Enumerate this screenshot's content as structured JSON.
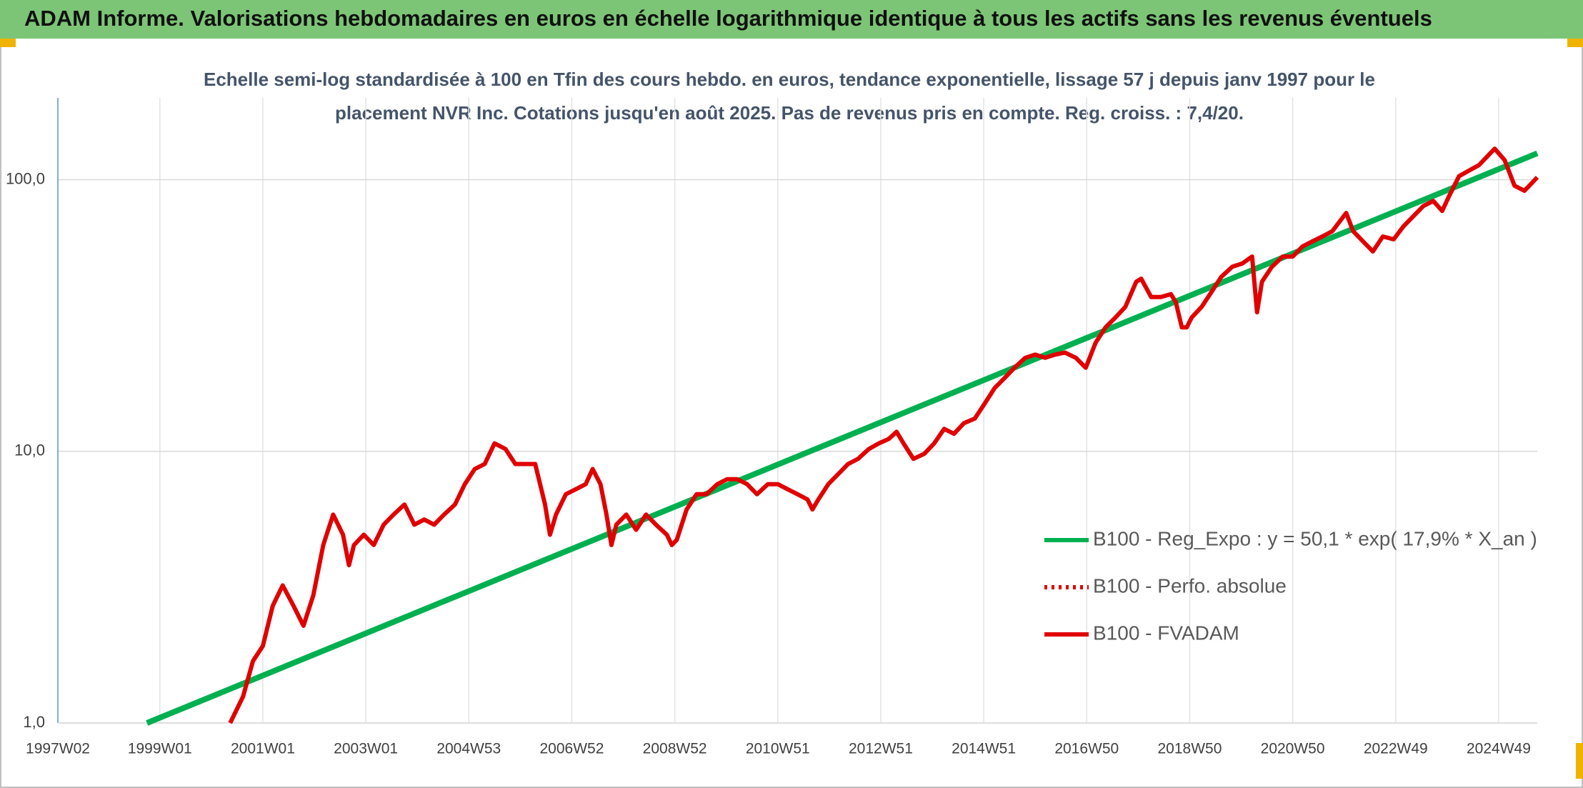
{
  "chart_data": {
    "type": "line",
    "title": "ADAM Informe. Valorisations hebdomadaires en euros en échelle logarithmique identique à tous les actifs sans les revenus éventuels",
    "subtitle": [
      "Echelle semi-log standardisée à 100 en Tfin des cours hebdo. en euros, tendance exponentielle, lissage 57 j depuis janv 1997 pour le",
      "placement NVR Inc. Cotations jusqu'en août 2025. Pas de revenus pris en compte. Reg. croiss. : 7,4/20."
    ],
    "log_scale": true,
    "grid": true,
    "legend": "right",
    "xlim": [
      0,
      1494
    ],
    "xticks": [
      {
        "value": 0,
        "label": "1997W02"
      },
      {
        "value": 103,
        "label": "1999W01"
      },
      {
        "value": 207,
        "label": "2001W01"
      },
      {
        "value": 311,
        "label": "2003W01"
      },
      {
        "value": 415,
        "label": "2004W53"
      },
      {
        "value": 519,
        "label": "2006W52"
      },
      {
        "value": 623,
        "label": "2008W52"
      },
      {
        "value": 727,
        "label": "2010W51"
      },
      {
        "value": 831,
        "label": "2012W51"
      },
      {
        "value": 935,
        "label": "2014W51"
      },
      {
        "value": 1039,
        "label": "2016W50"
      },
      {
        "value": 1143,
        "label": "2018W50"
      },
      {
        "value": 1247,
        "label": "2020W50"
      },
      {
        "value": 1351,
        "label": "2022W49"
      },
      {
        "value": 1455,
        "label": "2024W49"
      }
    ],
    "ylim": [
      1,
      200
    ],
    "yticks": [
      {
        "value": 1,
        "label": "1,0"
      },
      {
        "value": 10,
        "label": "10,0"
      },
      {
        "value": 100,
        "label": "100,0"
      }
    ],
    "series": [
      {
        "name": "B100 - Reg_Expo : y = 50,1 * exp( 17,9% *  X_an )",
        "color": "#00b050",
        "style": "solid",
        "x": [
          90,
          1494
        ],
        "values": [
          1.0,
          125
        ]
      },
      {
        "name": "B100 - Perfo. absolue",
        "color": "#e00000",
        "style": "dotted",
        "x": [],
        "values": []
      },
      {
        "name": "B100 - FVADAM",
        "color": "#e00000",
        "style": "solid",
        "x": [
          174,
          187,
          197,
          207,
          217,
          227,
          238,
          248,
          258,
          268,
          278,
          288,
          294,
          299,
          309,
          319,
          329,
          339,
          350,
          360,
          370,
          380,
          390,
          401,
          411,
          421,
          431,
          441,
          452,
          462,
          472,
          482,
          492,
          497,
          503,
          513,
          523,
          533,
          540,
          548,
          554,
          559,
          564,
          574,
          584,
          594,
          604,
          615,
          620,
          625,
          635,
          645,
          655,
          666,
          676,
          686,
          696,
          706,
          717,
          727,
          737,
          747,
          757,
          762,
          768,
          778,
          788,
          798,
          808,
          819,
          829,
          839,
          847,
          854,
          864,
          875,
          885,
          895,
          905,
          915,
          926,
          936,
          946,
          956,
          966,
          977,
          987,
          997,
          1007,
          1017,
          1028,
          1038,
          1048,
          1058,
          1068,
          1078,
          1089,
          1094,
          1104,
          1114,
          1124,
          1129,
          1135,
          1140,
          1145,
          1155,
          1165,
          1175,
          1186,
          1196,
          1206,
          1211,
          1216,
          1226,
          1237,
          1247,
          1257,
          1267,
          1277,
          1287,
          1301,
          1308,
          1318,
          1328,
          1338,
          1349,
          1359,
          1369,
          1379,
          1389,
          1398,
          1405,
          1415,
          1425,
          1435,
          1451,
          1461,
          1471,
          1481,
          1486,
          1494
        ],
        "values": [
          1.0,
          1.25,
          1.69,
          1.92,
          2.7,
          3.21,
          2.7,
          2.28,
          2.95,
          4.52,
          5.85,
          4.93,
          3.81,
          4.52,
          4.93,
          4.52,
          5.37,
          5.85,
          6.37,
          5.37,
          5.61,
          5.37,
          5.85,
          6.37,
          7.57,
          8.61,
          8.98,
          10.7,
          10.2,
          8.98,
          8.98,
          8.98,
          6.37,
          4.93,
          5.85,
          6.95,
          7.25,
          7.57,
          8.61,
          7.57,
          5.85,
          4.52,
          5.37,
          5.85,
          5.14,
          5.85,
          5.37,
          4.93,
          4.52,
          4.72,
          6.11,
          6.95,
          6.95,
          7.57,
          7.9,
          7.9,
          7.57,
          6.95,
          7.57,
          7.57,
          7.25,
          6.95,
          6.65,
          6.11,
          6.65,
          7.57,
          8.24,
          8.98,
          9.38,
          10.2,
          10.7,
          11.1,
          11.8,
          10.7,
          9.38,
          9.79,
          10.7,
          12.1,
          11.6,
          12.7,
          13.2,
          15.0,
          17.1,
          18.6,
          20.3,
          22.1,
          22.7,
          22.1,
          22.7,
          23.1,
          22.1,
          20.3,
          25.1,
          28.6,
          31.1,
          34.0,
          42.1,
          43.2,
          37.0,
          37.0,
          37.9,
          35.4,
          28.6,
          28.6,
          31.1,
          34.0,
          38.6,
          43.9,
          47.8,
          49.1,
          52.1,
          32.5,
          42.1,
          47.8,
          52.1,
          52.1,
          56.8,
          59.3,
          61.8,
          64.6,
          75.4,
          64.6,
          59.3,
          54.4,
          61.8,
          60.3,
          67.4,
          73.4,
          80.0,
          83.5,
          76.7,
          87.1,
          103,
          108,
          113,
          130,
          118,
          95,
          91,
          95,
          102
        ]
      }
    ]
  }
}
